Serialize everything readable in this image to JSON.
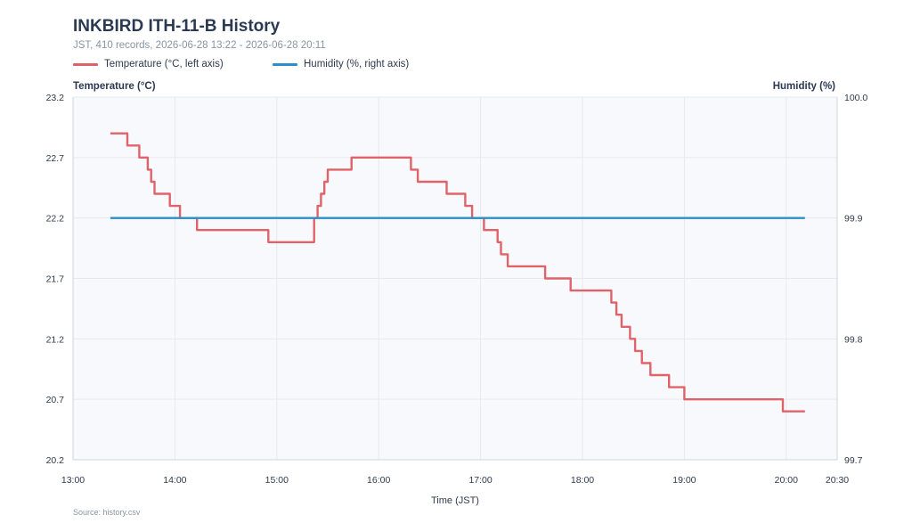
{
  "header": {
    "title": "INKBIRD ITH-11-B History",
    "subtitle": "JST, 410 records, 2026-06-28 13:22 - 2026-06-28 20:11"
  },
  "footer": {
    "source": "Source: history.csv"
  },
  "colors": {
    "temperature": "#e0636a",
    "humidity": "#2e8ec9",
    "plot_bg": "#f8f9fc",
    "grid": "#e6e9f0",
    "axis": "#cfd4dc",
    "text": "#2e3a4e"
  },
  "chart_data": {
    "type": "line",
    "title": "INKBIRD ITH-11-B History",
    "xlabel": "Time (JST)",
    "x_ticks": [
      "13:00",
      "14:00",
      "15:00",
      "16:00",
      "17:00",
      "18:00",
      "19:00",
      "20:00",
      "20:30"
    ],
    "xlim": [
      "13:00",
      "20:30"
    ],
    "grid": true,
    "legend_position": "top-left",
    "y_left": {
      "label": "Temperature (°C)",
      "ylim": [
        20.2,
        23.2
      ],
      "ticks": [
        "23.2",
        "22.7",
        "22.2",
        "21.7",
        "21.2",
        "20.7",
        "20.2"
      ]
    },
    "y_right": {
      "label": "Humidity (%)",
      "ylim": [
        99.7,
        100.0
      ],
      "ticks": [
        "100.0",
        "99.9",
        "99.8",
        "99.7"
      ]
    },
    "series": [
      {
        "name": "Temperature (°C, left axis)",
        "axis": "left",
        "step": true,
        "points": [
          [
            "13:22",
            22.9
          ],
          [
            "13:32",
            22.8
          ],
          [
            "13:39",
            22.7
          ],
          [
            "13:44",
            22.6
          ],
          [
            "13:46",
            22.5
          ],
          [
            "13:48",
            22.4
          ],
          [
            "13:57",
            22.3
          ],
          [
            "14:03",
            22.2
          ],
          [
            "14:13",
            22.1
          ],
          [
            "14:55",
            22.0
          ],
          [
            "15:22",
            22.2
          ],
          [
            "15:24",
            22.3
          ],
          [
            "15:26",
            22.4
          ],
          [
            "15:28",
            22.5
          ],
          [
            "15:30",
            22.6
          ],
          [
            "15:44",
            22.7
          ],
          [
            "16:19",
            22.6
          ],
          [
            "16:23",
            22.5
          ],
          [
            "16:40",
            22.4
          ],
          [
            "16:51",
            22.3
          ],
          [
            "16:55",
            22.2
          ],
          [
            "17:02",
            22.1
          ],
          [
            "17:10",
            22.0
          ],
          [
            "17:12",
            21.9
          ],
          [
            "17:16",
            21.8
          ],
          [
            "17:38",
            21.7
          ],
          [
            "17:53",
            21.6
          ],
          [
            "18:17",
            21.5
          ],
          [
            "18:20",
            21.4
          ],
          [
            "18:23",
            21.3
          ],
          [
            "18:28",
            21.2
          ],
          [
            "18:31",
            21.1
          ],
          [
            "18:35",
            21.0
          ],
          [
            "18:40",
            20.9
          ],
          [
            "18:51",
            20.8
          ],
          [
            "19:00",
            20.7
          ],
          [
            "19:58",
            20.6
          ],
          [
            "20:11",
            20.6
          ]
        ]
      },
      {
        "name": "Humidity (%, right axis)",
        "axis": "right",
        "step": false,
        "points": [
          [
            "13:22",
            99.9
          ],
          [
            "20:11",
            99.9
          ]
        ]
      }
    ]
  }
}
